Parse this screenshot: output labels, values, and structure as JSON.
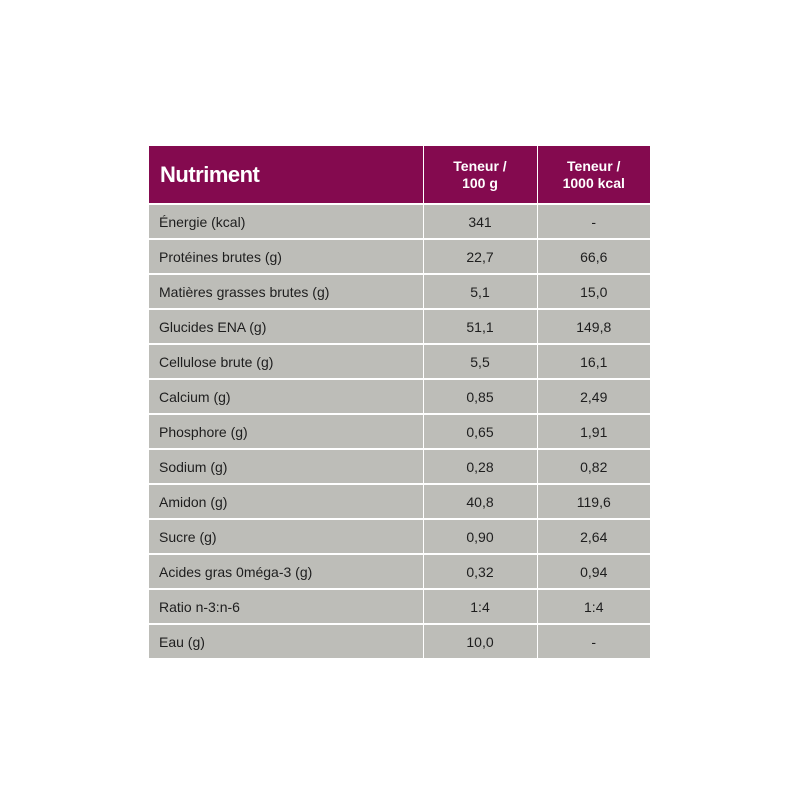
{
  "table": {
    "headers": {
      "nutrient": "Nutriment",
      "per_100g_line1": "Teneur /",
      "per_100g_line2": "100 g",
      "per_1000kcal_line1": "Teneur /",
      "per_1000kcal_line2": "1000 kcal"
    },
    "rows": [
      {
        "name": "Énergie (kcal)",
        "per_100g": "341",
        "per_1000kcal": "-"
      },
      {
        "name": "Protéines brutes (g)",
        "per_100g": "22,7",
        "per_1000kcal": "66,6"
      },
      {
        "name": "Matières grasses brutes (g)",
        "per_100g": "5,1",
        "per_1000kcal": "15,0"
      },
      {
        "name": "Glucides ENA (g)",
        "per_100g": "51,1",
        "per_1000kcal": "149,8"
      },
      {
        "name": "Cellulose brute (g)",
        "per_100g": "5,5",
        "per_1000kcal": "16,1"
      },
      {
        "name": "Calcium (g)",
        "per_100g": "0,85",
        "per_1000kcal": "2,49"
      },
      {
        "name": "Phosphore (g)",
        "per_100g": "0,65",
        "per_1000kcal": "1,91"
      },
      {
        "name": "Sodium (g)",
        "per_100g": "0,28",
        "per_1000kcal": "0,82"
      },
      {
        "name": "Amidon (g)",
        "per_100g": "40,8",
        "per_1000kcal": "119,6"
      },
      {
        "name": "Sucre (g)",
        "per_100g": "0,90",
        "per_1000kcal": "2,64"
      },
      {
        "name": "Acides gras 0méga-3 (g)",
        "per_100g": "0,32",
        "per_1000kcal": "0,94"
      },
      {
        "name": "Ratio n-3:n-6",
        "per_100g": "1:4",
        "per_1000kcal": "1:4"
      },
      {
        "name": "Eau (g)",
        "per_100g": "10,0",
        "per_1000kcal": "-"
      }
    ]
  },
  "colors": {
    "header_background": "#840a4f",
    "header_text": "#ffffff",
    "row_background": "#bdbdb8",
    "row_text": "#1e1e1e",
    "grid_lines": "#ffffff"
  }
}
